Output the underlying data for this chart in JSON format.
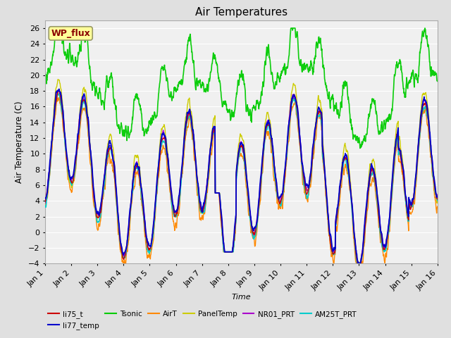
{
  "title": "Air Temperatures",
  "xlabel": "Time",
  "ylabel": "Air Temperature (C)",
  "ylim": [
    -4,
    27
  ],
  "xlim": [
    0,
    15
  ],
  "xtick_labels": [
    "Jan 1",
    "Jan 2",
    "Jan 3",
    "Jan 4",
    "Jan 5",
    "Jan 6",
    "Jan 7",
    "Jan 8",
    "Jan 9",
    "Jan 10",
    "Jan 11",
    "Jan 12",
    "Jan 13",
    "Jan 14",
    "Jan 15",
    "Jan 16"
  ],
  "ytick_values": [
    -4,
    -2,
    0,
    2,
    4,
    6,
    8,
    10,
    12,
    14,
    16,
    18,
    20,
    22,
    24,
    26
  ],
  "fig_bg_color": "#e0e0e0",
  "plot_bg_color": "#f0f0f0",
  "grid_color": "#ffffff",
  "annotation_text": "WP_flux",
  "annotation_color": "#8b0000",
  "annotation_bg": "#ffff99",
  "legend_entries": [
    "li75_t",
    "li77_temp",
    "Tsonic",
    "AirT",
    "PanelTemp",
    "NR01_PRT",
    "AM25T_PRT"
  ],
  "line_colors": {
    "li75_t": "#cc0000",
    "li77_temp": "#0000cc",
    "Tsonic": "#00cc00",
    "AirT": "#ff8800",
    "PanelTemp": "#cccc00",
    "NR01_PRT": "#aa00cc",
    "AM25T_PRT": "#00cccc"
  },
  "linewidth": 1.0
}
